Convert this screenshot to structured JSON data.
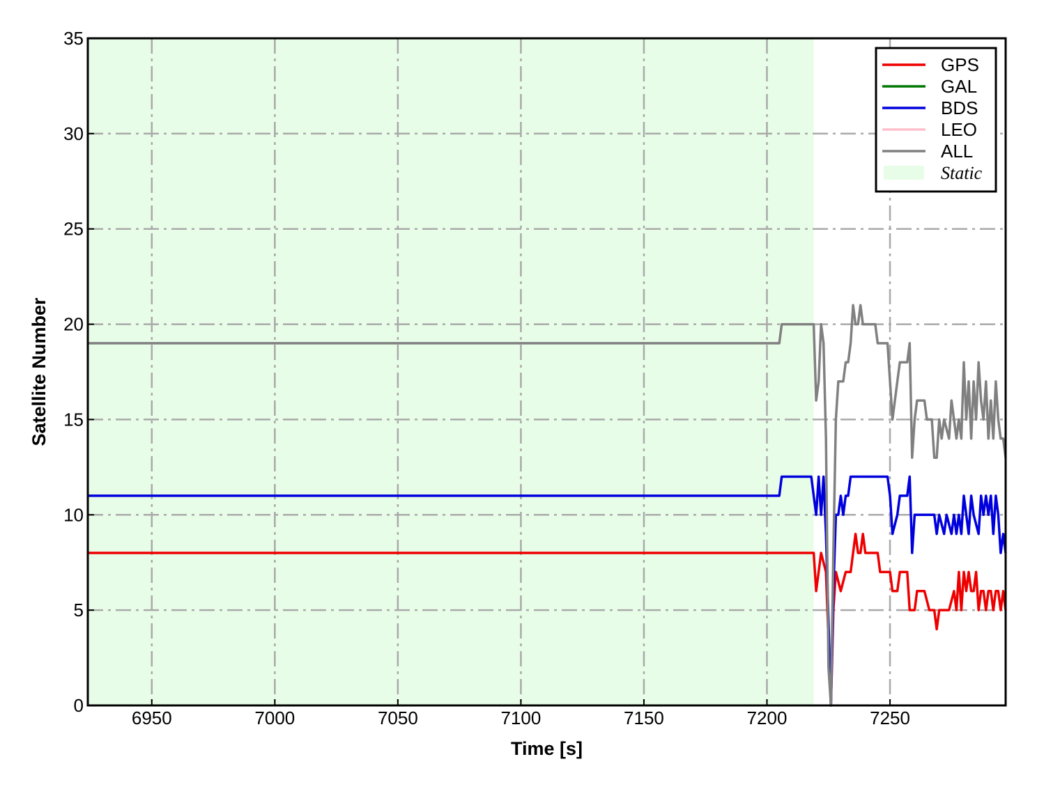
{
  "chart_data": {
    "type": "line",
    "xlabel": "Time [s]",
    "ylabel": "Satellite Number",
    "xlim": [
      6924,
      7297
    ],
    "ylim": [
      0,
      35
    ],
    "xticks": [
      6950,
      7000,
      7050,
      7100,
      7150,
      7200,
      7250
    ],
    "yticks": [
      0,
      5,
      10,
      15,
      20,
      25,
      30,
      35
    ],
    "grid": true,
    "legend_position": "top-right",
    "shaded_region": {
      "label": "Static",
      "x_start": 6924,
      "x_end": 7219,
      "color": "#e8fde8"
    },
    "series": [
      {
        "name": "GPS",
        "color": "#ee0000",
        "x": [
          6924,
          7219,
          7220,
          7222,
          7224,
          7226,
          7227,
          7228,
          7230,
          7232,
          7234,
          7236,
          7237,
          7238,
          7239,
          7240,
          7242,
          7243,
          7244,
          7245,
          7246,
          7250,
          7251,
          7252,
          7253,
          7254,
          7256,
          7257,
          7258,
          7260,
          7261,
          7262,
          7264,
          7266,
          7268,
          7269,
          7270,
          7274,
          7276,
          7277,
          7278,
          7279,
          7280,
          7281,
          7282,
          7283,
          7284,
          7285,
          7286,
          7287,
          7288,
          7289,
          7290,
          7291,
          7292,
          7293,
          7294,
          7295,
          7296,
          7297
        ],
        "y": [
          8,
          8,
          6,
          8,
          7,
          0,
          5,
          7,
          6,
          7,
          7,
          9,
          8,
          8,
          9,
          8,
          8,
          8,
          8,
          8,
          7,
          7,
          6,
          6,
          6,
          7,
          7,
          7,
          5,
          5,
          6,
          6,
          6,
          5,
          5,
          4,
          5,
          5,
          6,
          5,
          7,
          5,
          7,
          6,
          7,
          6,
          6,
          7,
          5,
          6,
          6,
          5,
          6,
          6,
          5,
          6,
          6,
          5,
          6,
          5
        ]
      },
      {
        "name": "GAL",
        "color": "#007700",
        "x": [],
        "y": []
      },
      {
        "name": "BDS",
        "color": "#0000dd",
        "x": [
          6924,
          7205,
          7206,
          7218,
          7219,
          7220,
          7221,
          7222,
          7223,
          7224,
          7226,
          7227,
          7228,
          7229,
          7230,
          7231,
          7232,
          7233,
          7234,
          7235,
          7249,
          7250,
          7251,
          7253,
          7254,
          7256,
          7257,
          7258,
          7259,
          7260,
          7268,
          7269,
          7270,
          7272,
          7273,
          7275,
          7276,
          7277,
          7278,
          7279,
          7280,
          7281,
          7282,
          7283,
          7284,
          7286,
          7287,
          7288,
          7289,
          7290,
          7291,
          7292,
          7293,
          7294,
          7295,
          7296,
          7297
        ],
        "y": [
          11,
          11,
          12,
          12,
          11,
          10,
          12,
          10,
          12,
          9,
          0,
          6,
          10,
          10,
          11,
          10,
          11,
          11,
          12,
          12,
          12,
          11,
          9,
          10,
          11,
          11,
          11,
          12,
          8,
          10,
          10,
          9,
          10,
          9,
          10,
          9,
          10,
          9,
          10,
          9,
          11,
          10,
          9,
          11,
          10,
          9,
          11,
          10,
          11,
          10,
          11,
          9,
          11,
          10,
          8,
          9,
          8
        ]
      },
      {
        "name": "LEO",
        "color": "#ffc0cb",
        "x": [],
        "y": []
      },
      {
        "name": "ALL",
        "color": "#808080",
        "x": [
          6924,
          7205,
          7206,
          7218,
          7219,
          7220,
          7221,
          7222,
          7223,
          7224,
          7225,
          7226,
          7227,
          7228,
          7229,
          7230,
          7231,
          7232,
          7233,
          7234,
          7235,
          7236,
          7237,
          7238,
          7239,
          7240,
          7241,
          7244,
          7245,
          7246,
          7249,
          7250,
          7251,
          7252,
          7253,
          7254,
          7256,
          7257,
          7258,
          7259,
          7260,
          7261,
          7264,
          7265,
          7267,
          7268,
          7269,
          7270,
          7271,
          7272,
          7274,
          7275,
          7276,
          7277,
          7278,
          7279,
          7280,
          7281,
          7282,
          7283,
          7284,
          7285,
          7286,
          7287,
          7288,
          7289,
          7290,
          7291,
          7292,
          7293,
          7294,
          7295,
          7296,
          7297
        ],
        "y": [
          19,
          19,
          20,
          20,
          20,
          16,
          17,
          20,
          19,
          14,
          2,
          0,
          8,
          15,
          17,
          17,
          17,
          18,
          18,
          19,
          21,
          20,
          20,
          21,
          20,
          20,
          20,
          20,
          19,
          19,
          19,
          17,
          15,
          16,
          17,
          18,
          18,
          18,
          19,
          13,
          15,
          16,
          16,
          15,
          15,
          13,
          13,
          15,
          14,
          15,
          14,
          16,
          15,
          14,
          15,
          14,
          18,
          15,
          17,
          14,
          17,
          15,
          18,
          16,
          15,
          17,
          14,
          16,
          14,
          17,
          15,
          14,
          14,
          13
        ]
      }
    ],
    "legend": [
      {
        "label": "GPS",
        "color": "#ee0000",
        "kind": "line"
      },
      {
        "label": "GAL",
        "color": "#007700",
        "kind": "line"
      },
      {
        "label": "BDS",
        "color": "#0000dd",
        "kind": "line"
      },
      {
        "label": "LEO",
        "color": "#ffc0cb",
        "kind": "line"
      },
      {
        "label": "ALL",
        "color": "#808080",
        "kind": "line"
      },
      {
        "label": "Static",
        "color": "#e8fde8",
        "kind": "patch",
        "italic": true
      }
    ]
  }
}
